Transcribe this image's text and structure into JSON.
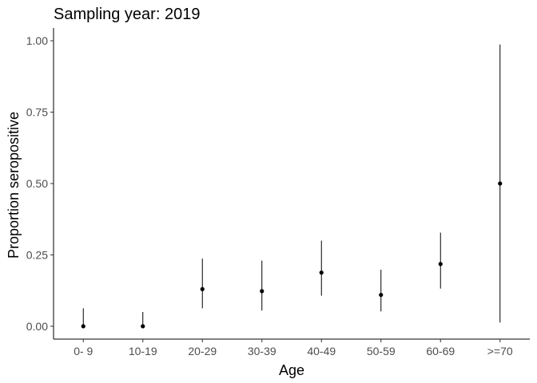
{
  "chart_data": {
    "type": "scatter",
    "title": "Sampling year: 2019",
    "xlabel": "Age",
    "ylabel": "Proportion seropositive",
    "categories": [
      "0- 9",
      "10-19",
      "20-29",
      "30-39",
      "40-49",
      "50-59",
      "60-69",
      ">=70"
    ],
    "series": [
      {
        "values": [
          0.0,
          0.0,
          0.13,
          0.123,
          0.188,
          0.11,
          0.218,
          0.5
        ],
        "lower": [
          0.0,
          0.0,
          0.063,
          0.055,
          0.107,
          0.052,
          0.132,
          0.013
        ],
        "upper": [
          0.063,
          0.05,
          0.237,
          0.23,
          0.3,
          0.198,
          0.328,
          0.987
        ]
      }
    ],
    "ylim": [
      -0.045,
      1.045
    ],
    "yticks": [
      "0.00",
      "0.25",
      "0.50",
      "0.75",
      "1.00"
    ],
    "ytick_values": [
      0,
      0.25,
      0.5,
      0.75,
      1.0
    ],
    "grid": false,
    "legend": "none"
  }
}
